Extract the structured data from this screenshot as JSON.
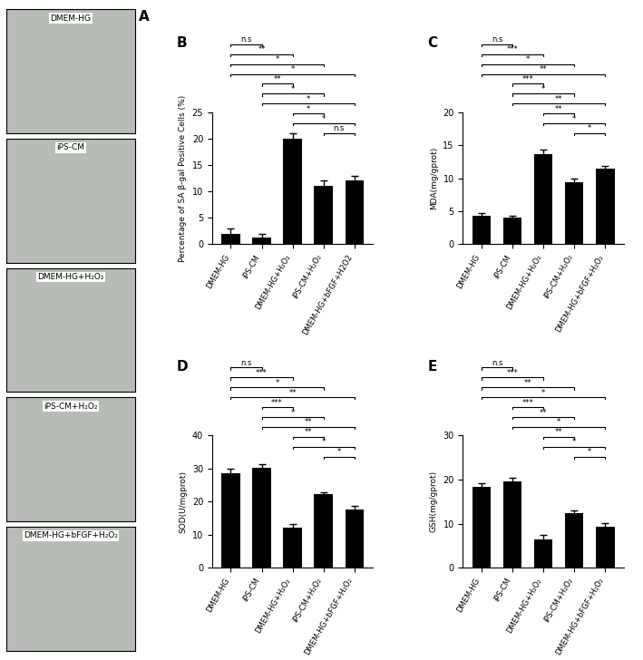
{
  "chart_data": [
    {
      "type": "bar",
      "title": "B",
      "y_label": "Percentage of SA β-gal Positive Cells (%)",
      "categories": [
        "DMEM-HG",
        "iPS-CM",
        "DMEM-HG+H₂O₂",
        "iPS-CM+H₂O₂",
        "DMEM-HG+bFGF+H2O2"
      ],
      "values": [
        2.0,
        1.2,
        20.0,
        11.0,
        12.0
      ],
      "errors": [
        1.0,
        0.8,
        1.0,
        1.0,
        1.0
      ],
      "color": "#000000",
      "ylim": [
        0,
        25
      ],
      "yticks": [
        0,
        5,
        10,
        15,
        20,
        25
      ],
      "comparisons": [
        {
          "from": 0,
          "to": 1,
          "label": "n.s"
        },
        {
          "from": 0,
          "to": 2,
          "label": "**"
        },
        {
          "from": 0,
          "to": 3,
          "label": "*"
        },
        {
          "from": 0,
          "to": 4,
          "label": "*"
        },
        {
          "from": 1,
          "to": 2,
          "label": "**"
        },
        {
          "from": 1,
          "to": 3,
          "label": "*"
        },
        {
          "from": 1,
          "to": 4,
          "label": "*"
        },
        {
          "from": 2,
          "to": 3,
          "label": "*"
        },
        {
          "from": 2,
          "to": 4,
          "label": "*"
        },
        {
          "from": 3,
          "to": 4,
          "label": "n.s"
        }
      ]
    },
    {
      "type": "bar",
      "title": "C",
      "y_label": "MDA(mg/gprot)",
      "categories": [
        "DMEM-HG",
        "iPS-CM",
        "DMEM-HG+H₂O₂",
        "iPS-CM+H₂O₂",
        "DMEM-HG+bFGF+H₂O₂"
      ],
      "values": [
        4.3,
        4.0,
        13.6,
        9.4,
        11.5
      ],
      "errors": [
        0.4,
        0.3,
        0.8,
        0.5,
        0.3
      ],
      "color": "#000000",
      "ylim": [
        0,
        20
      ],
      "yticks": [
        0,
        5,
        10,
        15,
        20
      ],
      "comparisons": [
        {
          "from": 0,
          "to": 1,
          "label": "n.s"
        },
        {
          "from": 0,
          "to": 2,
          "label": "***"
        },
        {
          "from": 0,
          "to": 3,
          "label": "*"
        },
        {
          "from": 0,
          "to": 4,
          "label": "**"
        },
        {
          "from": 1,
          "to": 2,
          "label": "***"
        },
        {
          "from": 1,
          "to": 3,
          "label": "*"
        },
        {
          "from": 1,
          "to": 4,
          "label": "**"
        },
        {
          "from": 2,
          "to": 3,
          "label": "**"
        },
        {
          "from": 2,
          "to": 4,
          "label": "*"
        },
        {
          "from": 3,
          "to": 4,
          "label": "*"
        }
      ]
    },
    {
      "type": "bar",
      "title": "D",
      "y_label": "SOD(U/mgprot)",
      "categories": [
        "DMEM-HG",
        "iPS-CM",
        "DMEM-HG+H₂O₂",
        "iPS-CM+H₂O₂",
        "DMEM-HG+bFGF+H₂O₂"
      ],
      "values": [
        28.7,
        30.2,
        12.1,
        22.2,
        17.6
      ],
      "errors": [
        1.3,
        1.2,
        1.2,
        0.7,
        1.0
      ],
      "color": "#000000",
      "ylim": [
        0,
        40
      ],
      "yticks": [
        0,
        10,
        20,
        30,
        40
      ],
      "comparisons": [
        {
          "from": 0,
          "to": 1,
          "label": "n.s"
        },
        {
          "from": 0,
          "to": 2,
          "label": "***"
        },
        {
          "from": 0,
          "to": 3,
          "label": "*"
        },
        {
          "from": 0,
          "to": 4,
          "label": "**"
        },
        {
          "from": 1,
          "to": 2,
          "label": "***"
        },
        {
          "from": 1,
          "to": 3,
          "label": "*"
        },
        {
          "from": 1,
          "to": 4,
          "label": "**"
        },
        {
          "from": 2,
          "to": 3,
          "label": "**"
        },
        {
          "from": 2,
          "to": 4,
          "label": "*"
        },
        {
          "from": 3,
          "to": 4,
          "label": "*"
        }
      ]
    },
    {
      "type": "bar",
      "title": "E",
      "y_label": "GSH(mg/gprot)",
      "categories": [
        "DMEM-HG",
        "iPS-CM",
        "DMEM-HG+H₂O₂",
        "iPS-CM+H₂O₂",
        "DMEM-HG+bFGF+H₂O₂"
      ],
      "values": [
        18.3,
        19.6,
        6.4,
        12.3,
        9.2
      ],
      "errors": [
        0.9,
        0.9,
        1.1,
        0.8,
        0.9
      ],
      "color": "#000000",
      "ylim": [
        0,
        30
      ],
      "yticks": [
        0,
        10,
        20,
        30
      ],
      "comparisons": [
        {
          "from": 0,
          "to": 1,
          "label": "n.s"
        },
        {
          "from": 0,
          "to": 2,
          "label": "***"
        },
        {
          "from": 0,
          "to": 3,
          "label": "**"
        },
        {
          "from": 0,
          "to": 4,
          "label": "*"
        },
        {
          "from": 1,
          "to": 2,
          "label": "***"
        },
        {
          "from": 1,
          "to": 3,
          "label": "**"
        },
        {
          "from": 1,
          "to": 4,
          "label": "*"
        },
        {
          "from": 2,
          "to": 3,
          "label": "**"
        },
        {
          "from": 2,
          "to": 4,
          "label": "*"
        },
        {
          "from": 3,
          "to": 4,
          "label": "*"
        }
      ]
    }
  ],
  "images": {
    "label": "A",
    "captions": [
      "DMEM-HG",
      "iPS-CM",
      "DMEM-HG+H₂O₂",
      "iPS-CM+H₂O₂",
      "DMEM-HG+bFGF+H₂O₂"
    ]
  }
}
